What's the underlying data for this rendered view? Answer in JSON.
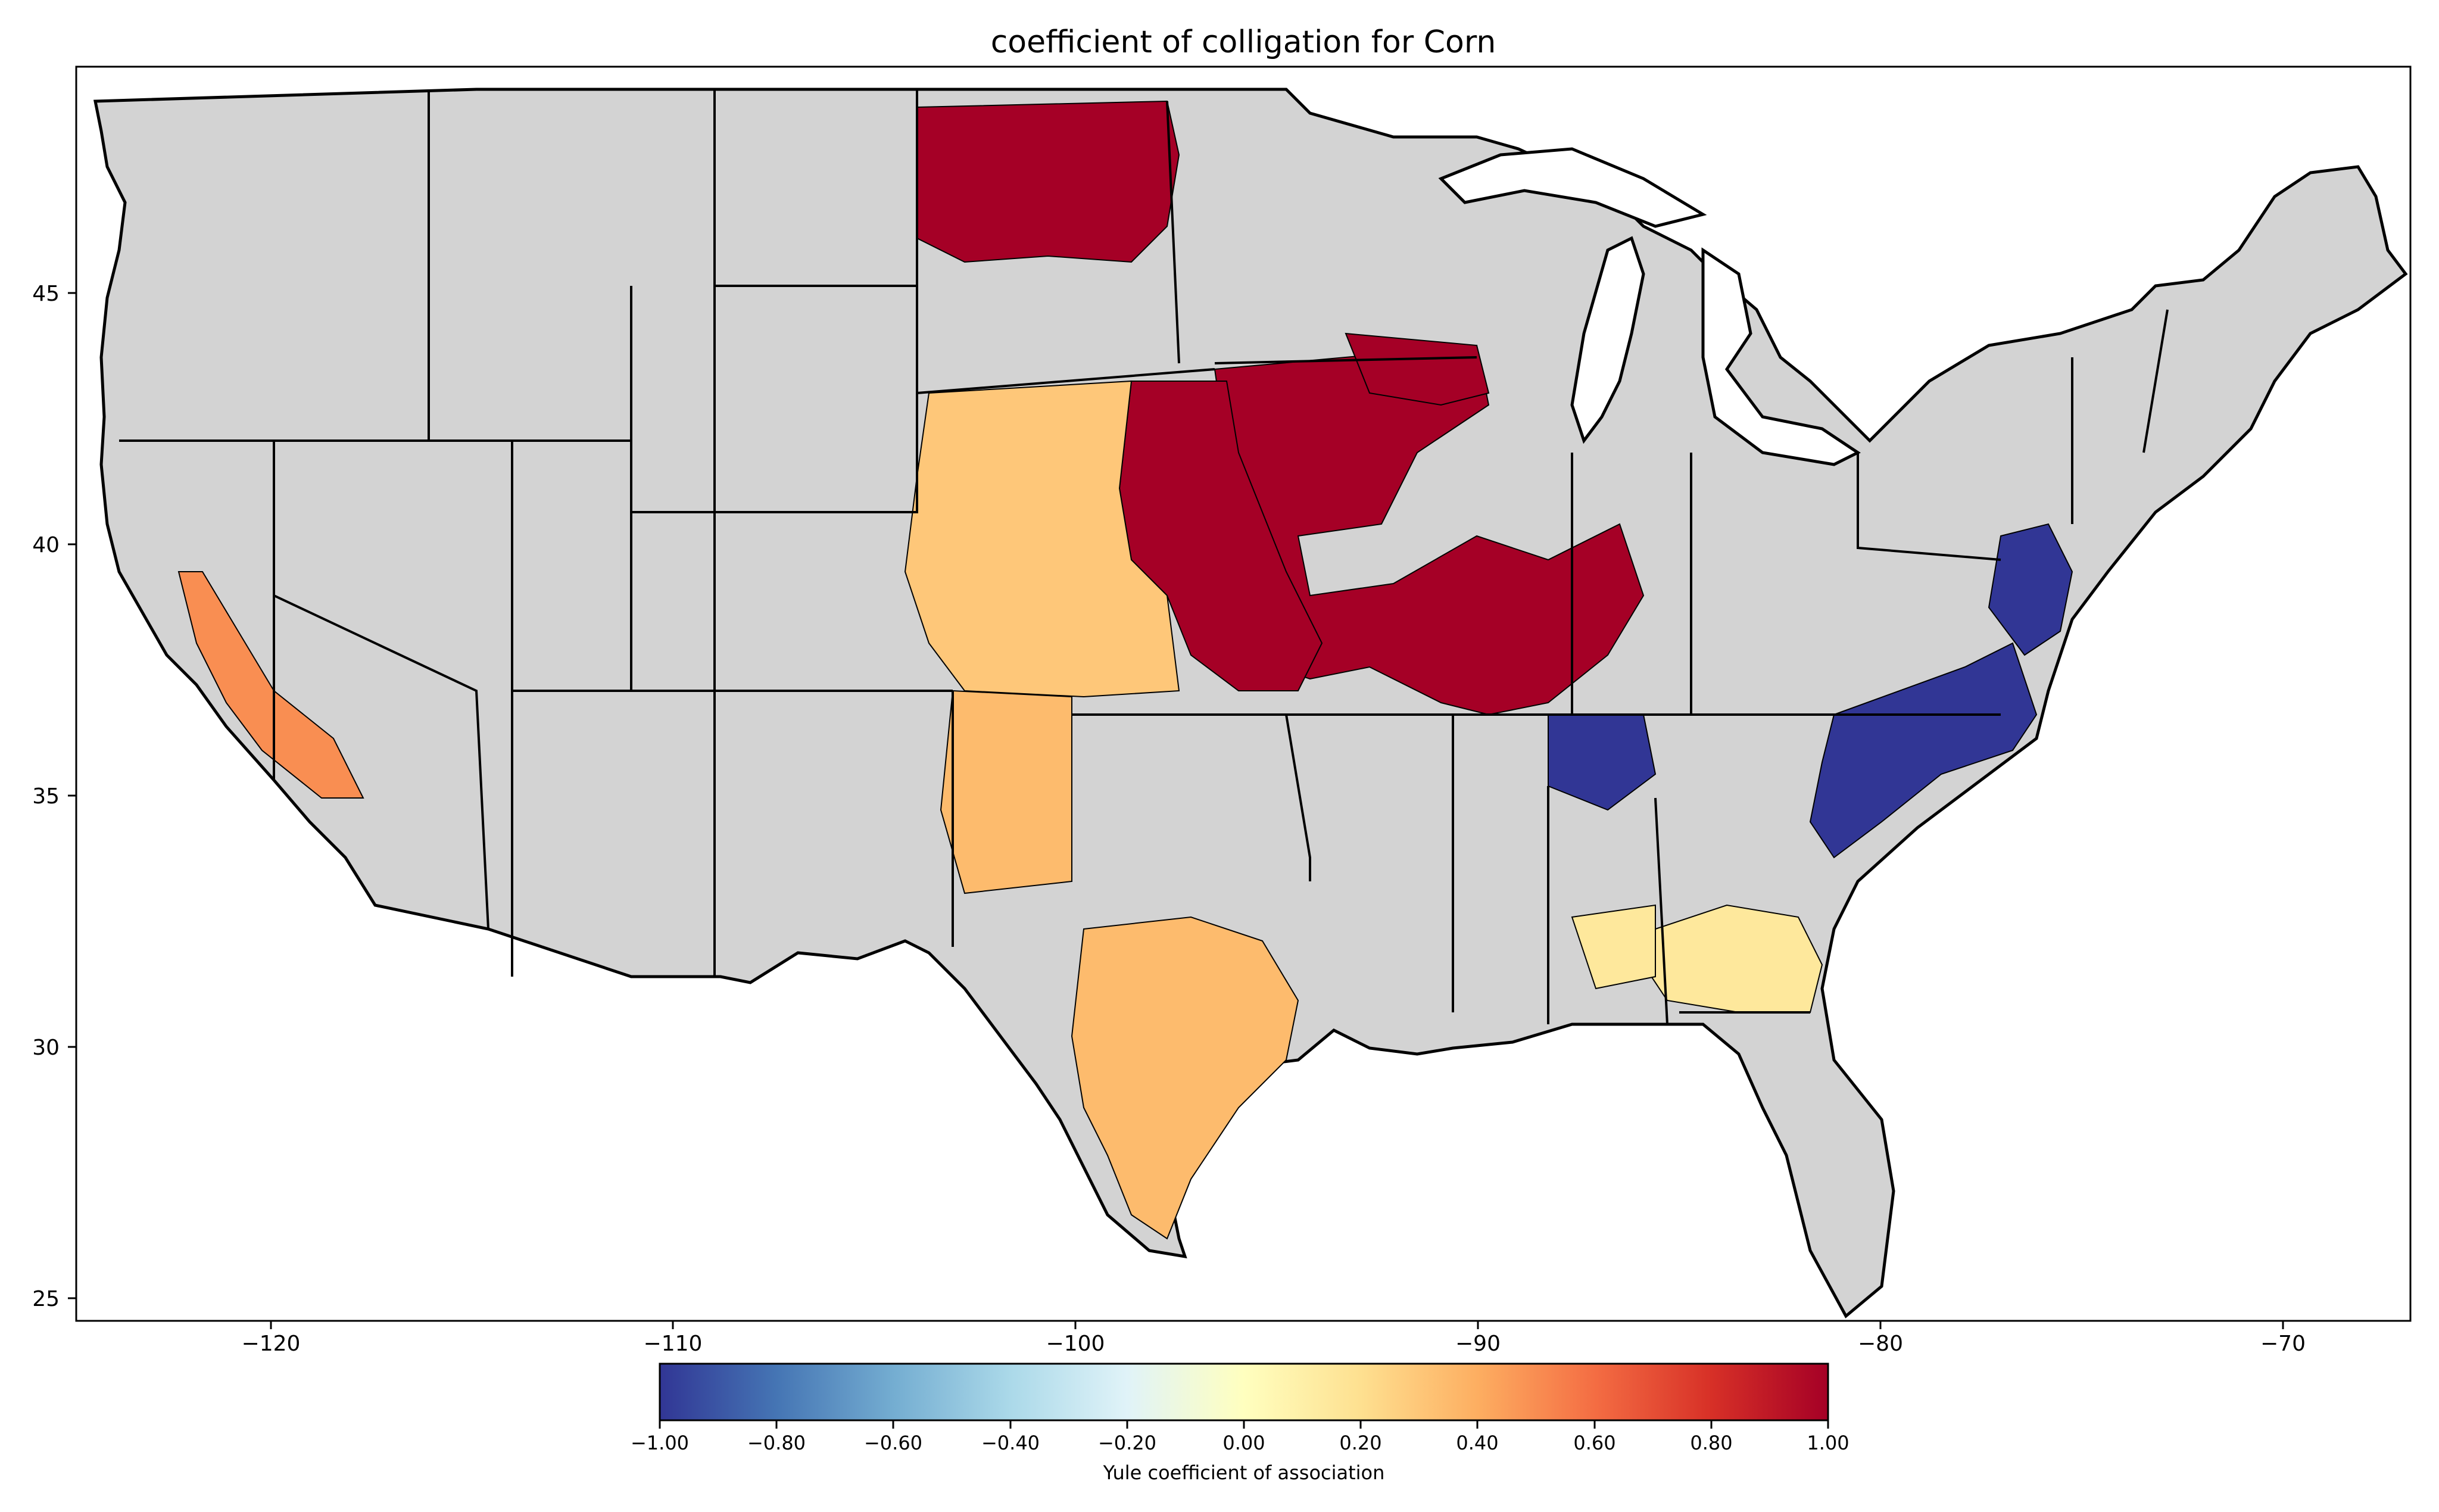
{
  "title": "coefficient of colligation for Corn",
  "colorbar": {
    "label": "Yule coefficient of association",
    "ticks": [
      "−1.00",
      "−0.80",
      "−0.60",
      "−0.40",
      "−0.20",
      "0.00",
      "0.20",
      "0.40",
      "0.60",
      "0.80",
      "1.00"
    ],
    "colors": [
      "#313695",
      "#4575b4",
      "#74add1",
      "#abd9e9",
      "#e0f3f8",
      "#ffffbf",
      "#fee090",
      "#fdae61",
      "#f46d43",
      "#d73027",
      "#a50026"
    ],
    "no_data_color": "#d3d3d3"
  },
  "axes": {
    "x_ticks": [
      "−120",
      "−110",
      "−100",
      "−90",
      "−80",
      "−70"
    ],
    "y_ticks": [
      "25",
      "30",
      "35",
      "40",
      "45"
    ]
  },
  "chart_data": {
    "type": "choropleth",
    "projection": "plate carree (lon/lat)",
    "xlim": [
      -125,
      -67
    ],
    "ylim": [
      24.5,
      49.5
    ],
    "color_scale": "RdYlBu_r",
    "value_range": [
      -1.0,
      1.0
    ],
    "regions": [
      {
        "name": "Corn Belt (MN/IA/IL/IN/KY)",
        "value": 1.0
      },
      {
        "name": "Eastern North Dakota",
        "value": 1.0
      },
      {
        "name": "Southeast Nebraska / Kansas",
        "value": 1.0
      },
      {
        "name": "Kansas (western)",
        "value": 0.3
      },
      {
        "name": "Texas (central)",
        "value": 0.35
      },
      {
        "name": "Virginia / North Carolina",
        "value": -1.0
      },
      {
        "name": "Maryland / Delaware",
        "value": -1.0
      },
      {
        "name": "Southern Georgia",
        "value": 0.15
      },
      {
        "name": "California Central Valley",
        "value": 0.5
      }
    ]
  }
}
